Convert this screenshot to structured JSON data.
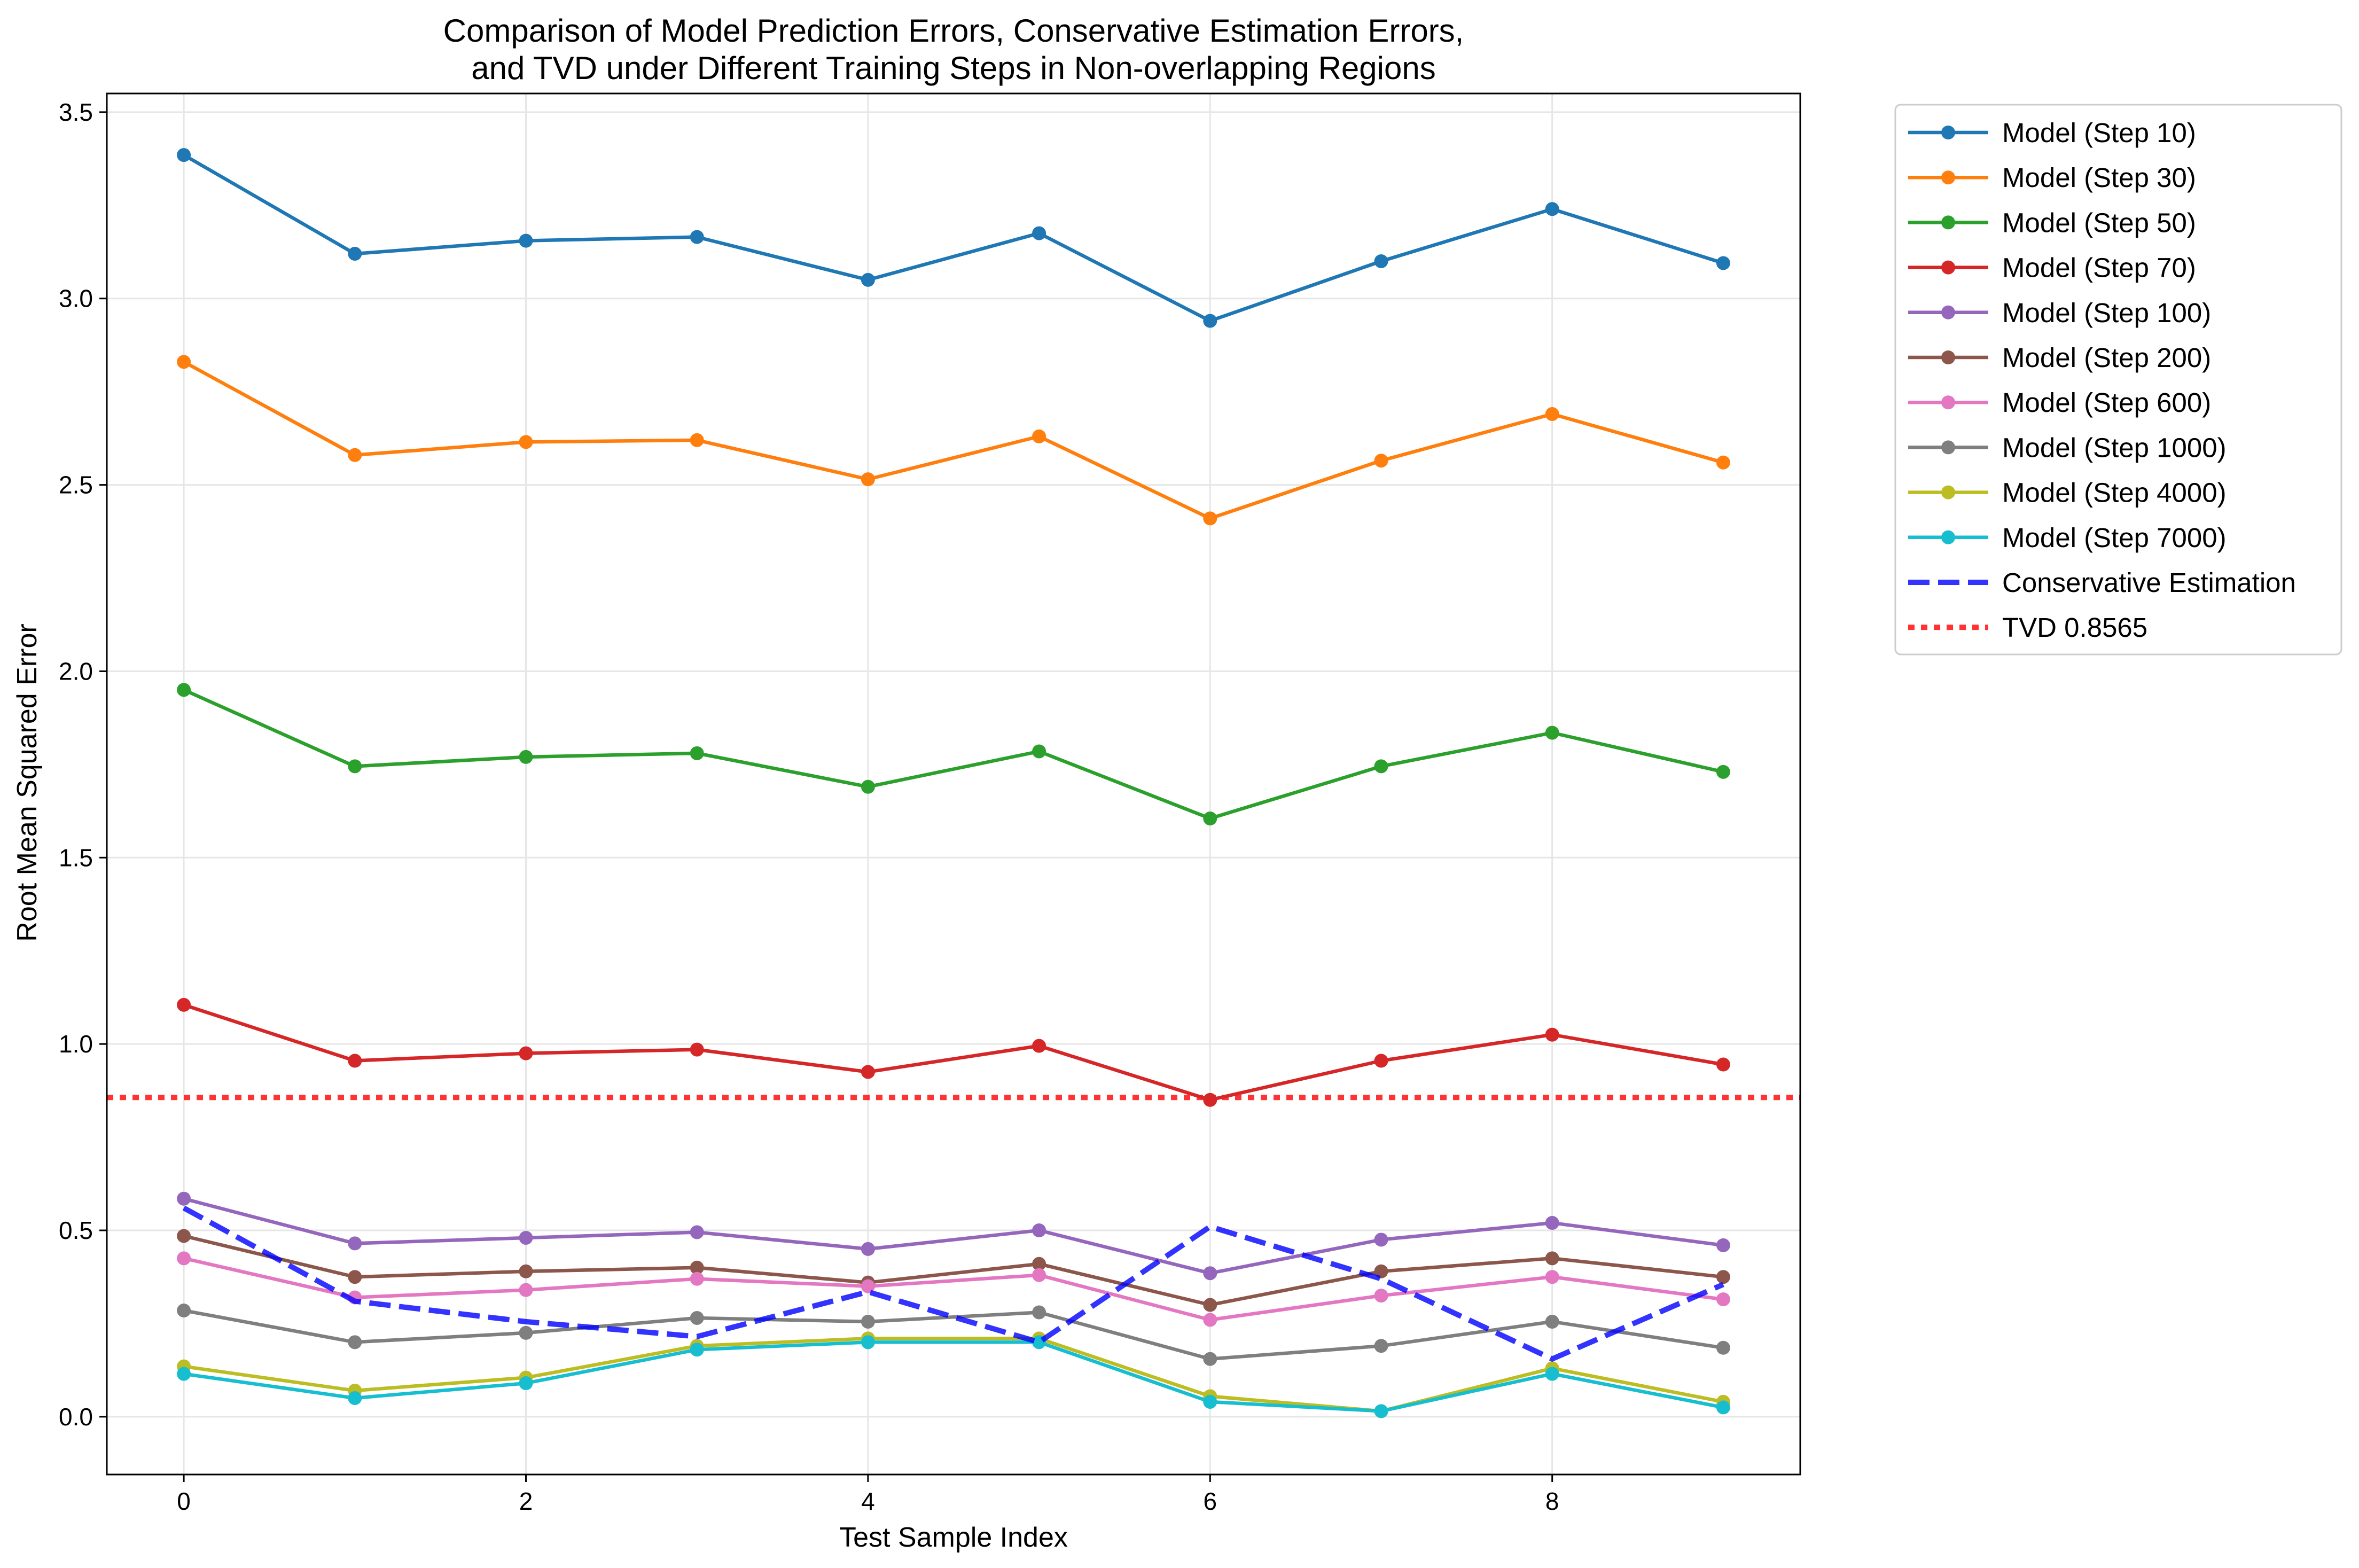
{
  "chart_data": {
    "type": "line",
    "title": [
      "Comparison of Model Prediction Errors, Conservative Estimation Errors,",
      "and TVD under Different Training Steps in Non-overlapping Regions"
    ],
    "xlabel": "Test Sample Index",
    "ylabel": "Root Mean Squared Error",
    "xlim": [
      -0.45,
      9.45
    ],
    "ylim": [
      -0.155,
      3.55
    ],
    "xticks": [
      0,
      2,
      4,
      6,
      8
    ],
    "xtick_labels": [
      "0",
      "2",
      "4",
      "6",
      "8"
    ],
    "yticks": [
      0.0,
      0.5,
      1.0,
      1.5,
      2.0,
      2.5,
      3.0,
      3.5
    ],
    "ytick_labels": [
      "0.0",
      "0.5",
      "1.0",
      "1.5",
      "2.0",
      "2.5",
      "3.0",
      "3.5"
    ],
    "grid": true,
    "legend_position": "outside-right-top",
    "x": [
      0,
      1,
      2,
      3,
      4,
      5,
      6,
      7,
      8,
      9
    ],
    "series": [
      {
        "name": "Model (Step 10)",
        "color": "#1f77b4",
        "style": "solid-marker",
        "values": [
          3.385,
          3.12,
          3.155,
          3.165,
          3.05,
          3.175,
          2.94,
          3.1,
          3.24,
          3.095
        ]
      },
      {
        "name": "Model (Step 30)",
        "color": "#ff7f0e",
        "style": "solid-marker",
        "values": [
          2.83,
          2.58,
          2.615,
          2.62,
          2.515,
          2.63,
          2.41,
          2.565,
          2.69,
          2.56
        ]
      },
      {
        "name": "Model (Step 50)",
        "color": "#2ca02c",
        "style": "solid-marker",
        "values": [
          1.95,
          1.745,
          1.77,
          1.78,
          1.69,
          1.785,
          1.605,
          1.745,
          1.835,
          1.73
        ]
      },
      {
        "name": "Model (Step 70)",
        "color": "#d62728",
        "style": "solid-marker",
        "values": [
          1.105,
          0.955,
          0.975,
          0.985,
          0.925,
          0.995,
          0.85,
          0.955,
          1.025,
          0.945
        ]
      },
      {
        "name": "Model (Step 100)",
        "color": "#9467bd",
        "style": "solid-marker",
        "values": [
          0.585,
          0.465,
          0.48,
          0.495,
          0.45,
          0.5,
          0.385,
          0.475,
          0.52,
          0.46
        ]
      },
      {
        "name": "Model (Step 200)",
        "color": "#8c564b",
        "style": "solid-marker",
        "values": [
          0.485,
          0.375,
          0.39,
          0.4,
          0.36,
          0.41,
          0.3,
          0.39,
          0.425,
          0.375
        ]
      },
      {
        "name": "Model (Step 600)",
        "color": "#e377c2",
        "style": "solid-marker",
        "values": [
          0.425,
          0.32,
          0.34,
          0.37,
          0.35,
          0.38,
          0.26,
          0.325,
          0.375,
          0.315
        ]
      },
      {
        "name": "Model (Step 1000)",
        "color": "#7f7f7f",
        "style": "solid-marker",
        "values": [
          0.285,
          0.2,
          0.225,
          0.265,
          0.255,
          0.28,
          0.155,
          0.19,
          0.255,
          0.185
        ]
      },
      {
        "name": "Model (Step 4000)",
        "color": "#bcbd22",
        "style": "solid-marker",
        "values": [
          0.135,
          0.07,
          0.105,
          0.19,
          0.21,
          0.21,
          0.055,
          0.015,
          0.13,
          0.04
        ]
      },
      {
        "name": "Model (Step 7000)",
        "color": "#17becf",
        "style": "solid-marker",
        "values": [
          0.115,
          0.05,
          0.09,
          0.18,
          0.2,
          0.2,
          0.04,
          0.015,
          0.115,
          0.025
        ]
      },
      {
        "name": "Conservative Estimation",
        "color": "#0000ff",
        "style": "dashed",
        "values": [
          0.56,
          0.31,
          0.255,
          0.215,
          0.335,
          0.2,
          0.51,
          0.37,
          0.155,
          0.355
        ]
      }
    ],
    "hlines": [
      {
        "name": "TVD 0.8565",
        "color": "#ff0000",
        "style": "dotted",
        "value": 0.8565
      }
    ]
  }
}
